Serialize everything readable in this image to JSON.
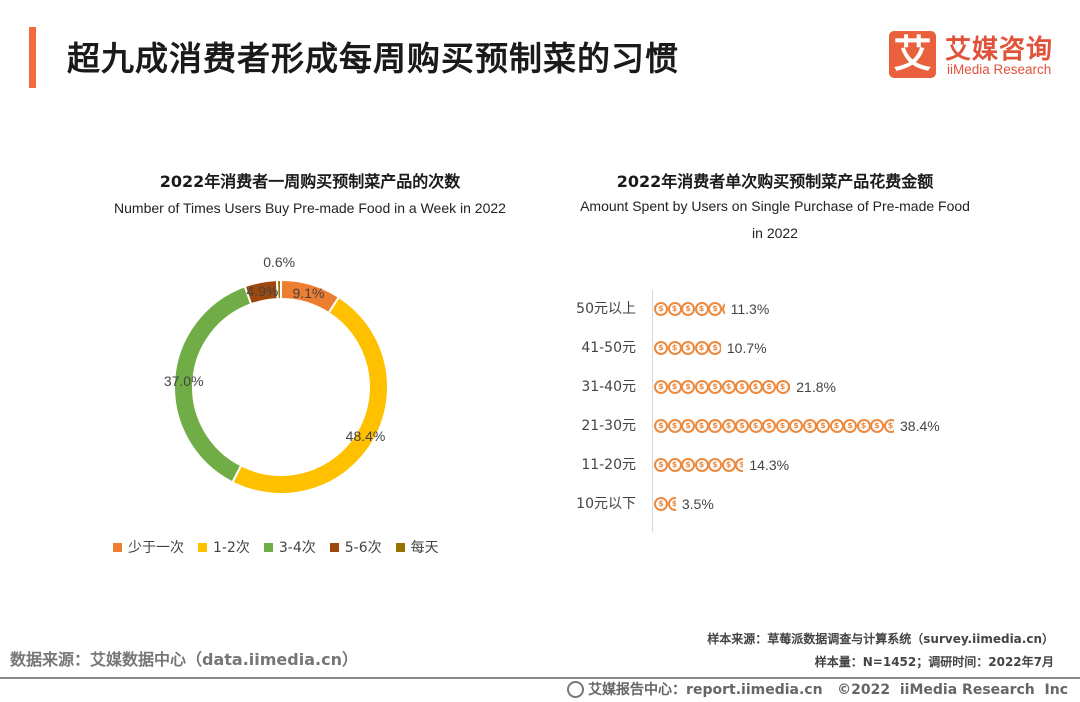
{
  "header": {
    "title": "超九成消费者形成每周购买预制菜的习惯",
    "logo_mark": "艾",
    "logo_cn": "艾媒咨询",
    "logo_en": "iiMedia Research",
    "accent": "#F26A3D"
  },
  "chart_data": [
    {
      "type": "pie",
      "variant": "donut",
      "title": "2022年消费者一周购买预制菜产品的次数",
      "subtitle": "Number of Times Users Buy Pre-made Food in a Week in 2022",
      "legend_position": "bottom",
      "categories": [
        "少于一次",
        "1-2次",
        "3-4次",
        "5-6次",
        "每天"
      ],
      "values": [
        9.1,
        48.4,
        37.0,
        4.9,
        0.6
      ],
      "labels": [
        "9.1%",
        "48.4%",
        "37.0%",
        "4.9%",
        "0.6%"
      ],
      "colors": [
        "#ED7D31",
        "#FFC000",
        "#70AD47",
        "#9E480E",
        "#997300"
      ],
      "unit": "%"
    },
    {
      "type": "bar",
      "orientation": "horizontal",
      "style": "pictograph-coins",
      "title": "2022年消费者单次购买预制菜产品花费金额",
      "subtitle_line1": "Amount Spent by Users on Single Purchase of Pre-made Food",
      "subtitle_line2": "in 2022",
      "categories": [
        "50元以上",
        "41-50元",
        "31-40元",
        "21-30元",
        "11-20元",
        "10元以下"
      ],
      "values": [
        11.3,
        10.7,
        21.8,
        38.4,
        14.3,
        3.5
      ],
      "labels": [
        "11.3%",
        "10.7%",
        "21.8%",
        "38.4%",
        "14.3%",
        "3.5%"
      ],
      "coin_glyph": "$",
      "color": "#EC8A3F",
      "unit": "%"
    }
  ],
  "footer": {
    "data_source": "数据来源：艾媒数据中心（data.iimedia.cn）",
    "sample_source": "样本来源：草莓派数据调查与计算系统（survey.iimedia.cn）",
    "sample_info": "样本量：N=1452；调研时间：2022年7月",
    "report_center": "艾媒报告中心：report.iimedia.cn   ©2022  iiMedia Research  Inc"
  }
}
